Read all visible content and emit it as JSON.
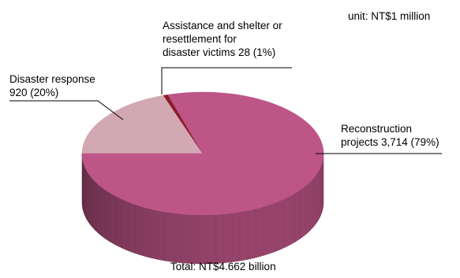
{
  "chart_data": {
    "type": "pie",
    "unit_label": "unit: NT$1 million",
    "total_label": "Total: NT$4.662 billion",
    "slices": [
      {
        "name": "Reconstruction\nprojects",
        "value": 3714,
        "percent": "79%",
        "label": "Reconstruction\nprojects 3,714 (79%)",
        "color": "#bd5587"
      },
      {
        "name": "Disaster response",
        "value": 920,
        "percent": "20%",
        "label": "Disaster response\n920 (20%)",
        "color": "#d2a8b3"
      },
      {
        "name": "Assistance and shelter or resettlement for disaster victims",
        "value": 28,
        "percent": "1%",
        "label": "Assistance and shelter or\nresettlement for\ndisaster victims 28 (1%)",
        "color": "#8e1b2a"
      }
    ]
  }
}
